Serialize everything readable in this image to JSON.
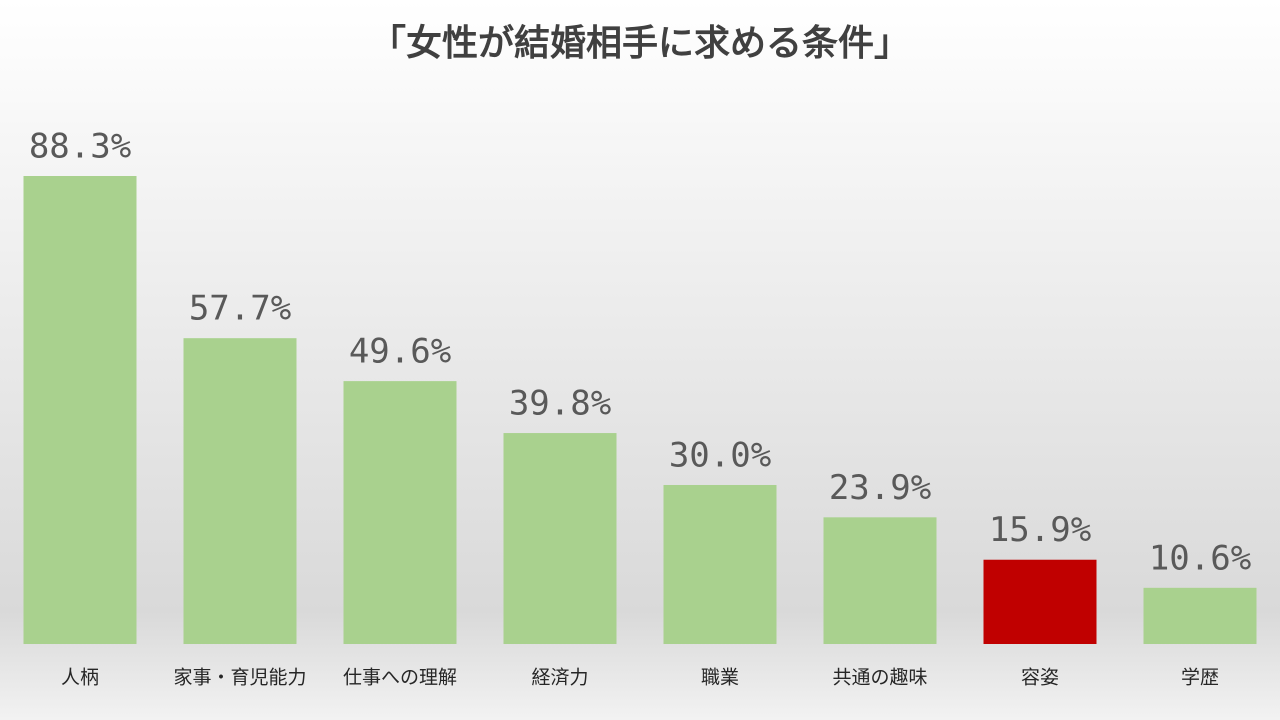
{
  "chart_data": {
    "type": "bar",
    "title": "「女性が結婚相手に求める条件」",
    "categories": [
      "人柄",
      "家事・育児能力",
      "仕事への理解",
      "経済力",
      "職業",
      "共通の趣味",
      "容姿",
      "学歴"
    ],
    "values": [
      88.3,
      57.7,
      49.6,
      39.8,
      30.0,
      23.9,
      15.9,
      10.6
    ],
    "value_labels": [
      "88.3%",
      "57.7%",
      "49.6%",
      "39.8%",
      "30.0%",
      "23.9%",
      "15.9%",
      "10.6%"
    ],
    "colors": [
      "#a9d18e",
      "#a9d18e",
      "#a9d18e",
      "#a9d18e",
      "#a9d18e",
      "#a9d18e",
      "#c00000",
      "#a9d18e"
    ]
  }
}
